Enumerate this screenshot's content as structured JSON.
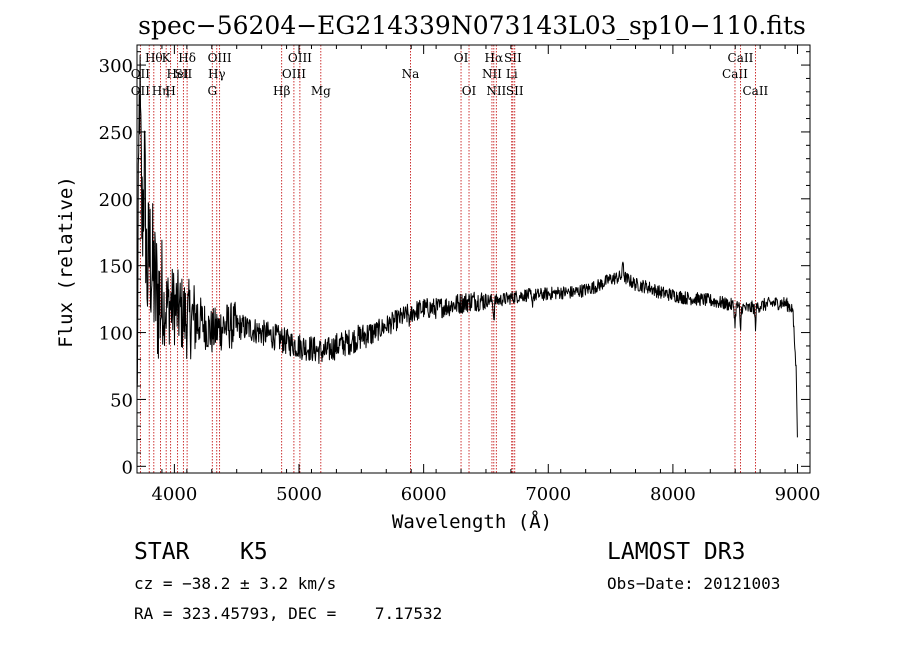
{
  "chart_data": {
    "type": "line",
    "title": "spec−56204−EG214339N073143L03_sp10−110.fits",
    "xlabel": "Wavelength (Å)",
    "ylabel": "Flux (relative)",
    "xlim": [
      3700,
      9100
    ],
    "ylim": [
      -5,
      315
    ],
    "xticks": [
      4000,
      5000,
      6000,
      7000,
      8000,
      9000
    ],
    "yticks": [
      0,
      50,
      100,
      150,
      200,
      250,
      300
    ],
    "series": [
      {
        "name": "spectrum",
        "anchors": [
          [
            3700,
            40
          ],
          [
            3720,
            290
          ],
          [
            3740,
            180
          ],
          [
            3760,
            220
          ],
          [
            3780,
            140
          ],
          [
            3800,
            160
          ],
          [
            3850,
            130
          ],
          [
            3900,
            120
          ],
          [
            4000,
            120
          ],
          [
            4100,
            110
          ],
          [
            4200,
            110
          ],
          [
            4300,
            100
          ],
          [
            4400,
            105
          ],
          [
            4500,
            105
          ],
          [
            4600,
            103
          ],
          [
            4700,
            100
          ],
          [
            4800,
            97
          ],
          [
            4900,
            93
          ],
          [
            5000,
            90
          ],
          [
            5100,
            88
          ],
          [
            5200,
            85
          ],
          [
            5300,
            90
          ],
          [
            5400,
            93
          ],
          [
            5500,
            97
          ],
          [
            5600,
            100
          ],
          [
            5700,
            105
          ],
          [
            5800,
            110
          ],
          [
            5900,
            115
          ],
          [
            6000,
            118
          ],
          [
            6100,
            118
          ],
          [
            6200,
            120
          ],
          [
            6300,
            122
          ],
          [
            6400,
            124
          ],
          [
            6500,
            124
          ],
          [
            6600,
            124
          ],
          [
            6700,
            126
          ],
          [
            6800,
            128
          ],
          [
            6900,
            128
          ],
          [
            7000,
            129
          ],
          [
            7100,
            130
          ],
          [
            7200,
            130
          ],
          [
            7300,
            132
          ],
          [
            7400,
            135
          ],
          [
            7500,
            140
          ],
          [
            7600,
            142
          ],
          [
            7700,
            136
          ],
          [
            7800,
            134
          ],
          [
            7900,
            130
          ],
          [
            8000,
            128
          ],
          [
            8100,
            126
          ],
          [
            8200,
            125
          ],
          [
            8300,
            124
          ],
          [
            8400,
            122
          ],
          [
            8500,
            120
          ],
          [
            8600,
            118
          ],
          [
            8700,
            120
          ],
          [
            8800,
            122
          ],
          [
            8900,
            122
          ],
          [
            8960,
            118
          ],
          [
            8990,
            70
          ],
          [
            9000,
            20
          ]
        ],
        "features": [
          {
            "wave": 5890,
            "depth": 10
          },
          {
            "wave": 6563,
            "depth": 14
          },
          {
            "wave": 8498,
            "depth": 14
          },
          {
            "wave": 8542,
            "depth": 18
          },
          {
            "wave": 8662,
            "depth": 14
          },
          {
            "wave": 6870,
            "depth": 8
          },
          {
            "wave": 7600,
            "depth": -12
          }
        ]
      }
    ],
    "lines": [
      {
        "wave": 3727,
        "labels": [
          {
            "text": "OII",
            "row": 2
          },
          {
            "text": "OII",
            "row": 3
          }
        ]
      },
      {
        "wave": 3798,
        "labels": []
      },
      {
        "wave": 3835,
        "labels": [
          {
            "text": "Hθ",
            "row": 1
          }
        ]
      },
      {
        "wave": 3889,
        "labels": [
          {
            "text": "Hη",
            "row": 3
          }
        ]
      },
      {
        "wave": 3934,
        "labels": [
          {
            "text": "K",
            "row": 1
          }
        ]
      },
      {
        "wave": 3970,
        "labels": [
          {
            "text": "H",
            "row": 3
          }
        ]
      },
      {
        "wave": 4026,
        "labels": [
          {
            "text": "HeI",
            "row": 2
          }
        ]
      },
      {
        "wave": 4072,
        "labels": [
          {
            "text": "SII",
            "row": 2
          }
        ]
      },
      {
        "wave": 4102,
        "labels": [
          {
            "text": "Hδ",
            "row": 1
          }
        ]
      },
      {
        "wave": 4304,
        "labels": [
          {
            "text": "G",
            "row": 3
          }
        ]
      },
      {
        "wave": 4340,
        "labels": [
          {
            "text": "Hγ",
            "row": 2
          }
        ]
      },
      {
        "wave": 4363,
        "labels": [
          {
            "text": "OIII",
            "row": 1
          }
        ]
      },
      {
        "wave": 4861,
        "labels": [
          {
            "text": "Hβ",
            "row": 3
          }
        ]
      },
      {
        "wave": 4959,
        "labels": [
          {
            "text": "OIII",
            "row": 2
          }
        ]
      },
      {
        "wave": 5007,
        "labels": [
          {
            "text": "OIII",
            "row": 1
          }
        ]
      },
      {
        "wave": 5175,
        "labels": [
          {
            "text": "Mg",
            "row": 3
          }
        ]
      },
      {
        "wave": 5894,
        "labels": [
          {
            "text": "Na",
            "row": 2
          }
        ]
      },
      {
        "wave": 6300,
        "labels": [
          {
            "text": "OI",
            "row": 1
          }
        ]
      },
      {
        "wave": 6364,
        "labels": [
          {
            "text": "OI",
            "row": 3
          }
        ]
      },
      {
        "wave": 6548,
        "labels": [
          {
            "text": "NII",
            "row": 2
          }
        ]
      },
      {
        "wave": 6563,
        "labels": [
          {
            "text": "Hα",
            "row": 1
          }
        ]
      },
      {
        "wave": 6583,
        "labels": [
          {
            "text": "NII",
            "row": 3
          }
        ]
      },
      {
        "wave": 6707,
        "labels": [
          {
            "text": "Li",
            "row": 2
          }
        ]
      },
      {
        "wave": 6716,
        "labels": [
          {
            "text": "SII",
            "row": 1
          }
        ]
      },
      {
        "wave": 6731,
        "labels": [
          {
            "text": "SII",
            "row": 3
          }
        ]
      },
      {
        "wave": 8498,
        "labels": [
          {
            "text": "CaII",
            "row": 2
          }
        ]
      },
      {
        "wave": 8542,
        "labels": [
          {
            "text": "CaII",
            "row": 1
          }
        ]
      },
      {
        "wave": 8662,
        "labels": [
          {
            "text": "CaII",
            "row": 3
          }
        ]
      }
    ],
    "colors": {
      "spectrum": "#000000",
      "lines": "#c00000",
      "axes": "#000000"
    }
  },
  "info": {
    "object_class": "STAR",
    "subclass": "K5",
    "cz": "cz = −38.2 ± 3.2 km/s",
    "radec": "RA = 323.45793, DEC =    7.17532",
    "survey": "LAMOST DR3",
    "obs_date": "Obs−Date: 20121003"
  }
}
